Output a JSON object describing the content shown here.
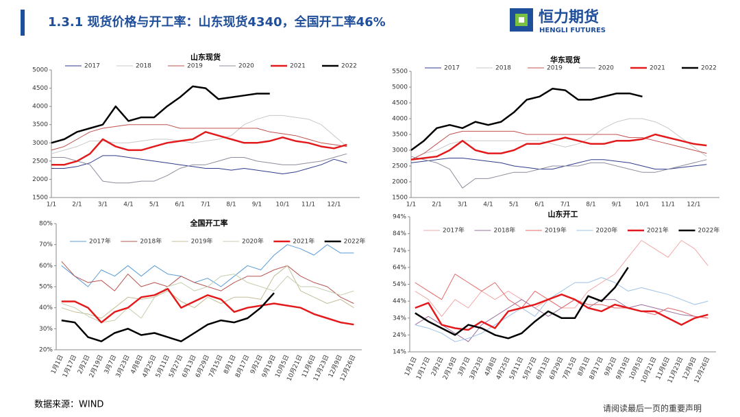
{
  "header": {
    "title": "1.3.1  现货价格与开工率：山东现货4340，全国开工率46%",
    "logo_cn": "恒力期货",
    "logo_en": "HENGLI FUTURES"
  },
  "footer": {
    "source": "数据来源：WIND",
    "notice": "请阅读最后一页的重要声明"
  },
  "chart_data": [
    {
      "type": "line",
      "title": "山东现货",
      "legend": "top",
      "grid": false,
      "categories": [
        "1/1",
        null,
        "2/1",
        null,
        "3/1",
        null,
        "4/1",
        null,
        "5/1",
        null,
        "6/1",
        null,
        "7/1",
        null,
        "8/1",
        null,
        "9/1",
        null,
        "10/1",
        null,
        "11/1",
        null,
        "12/1",
        null
      ],
      "ylim": [
        1500,
        5000
      ],
      "yticks": [
        1500,
        2000,
        2500,
        3000,
        3500,
        4000,
        4500,
        5000
      ],
      "series": [
        {
          "name": "2017",
          "color": "#2f3a8c",
          "width": 1,
          "values": [
            2300,
            2300,
            2350,
            2450,
            2650,
            2650,
            2600,
            2550,
            2500,
            2450,
            2400,
            2350,
            2300,
            2300,
            2250,
            2300,
            2250,
            2200,
            2150,
            2200,
            2300,
            2400,
            2550,
            2450
          ]
        },
        {
          "name": "2018",
          "color": "#c8c8c8",
          "width": 1,
          "values": [
            2700,
            2800,
            2900,
            3050,
            3050,
            3000,
            3000,
            3050,
            3100,
            3100,
            3050,
            3000,
            3050,
            3100,
            3200,
            3500,
            3650,
            3750,
            3750,
            3700,
            3650,
            3500,
            3200,
            2900
          ]
        },
        {
          "name": "2019",
          "color": "#c0504d",
          "width": 1,
          "values": [
            2800,
            2900,
            3100,
            3300,
            3400,
            3450,
            3500,
            3500,
            3500,
            3500,
            3400,
            3400,
            3400,
            3400,
            3400,
            3400,
            3400,
            3300,
            3250,
            3200,
            3100,
            3000,
            2950,
            2900
          ]
        },
        {
          "name": "2020",
          "color": "#8c8c9c",
          "width": 1,
          "values": [
            2600,
            2600,
            2500,
            2400,
            1950,
            1900,
            1900,
            1950,
            1950,
            2100,
            2300,
            2400,
            2400,
            2500,
            2600,
            2600,
            2500,
            2450,
            2400,
            2400,
            2450,
            2500,
            2600,
            2700
          ]
        },
        {
          "name": "2021",
          "color": "#e31a1c",
          "width": 2.5,
          "values": [
            2400,
            2400,
            2500,
            2700,
            3100,
            2900,
            2800,
            2800,
            2900,
            3000,
            3050,
            3100,
            3300,
            3200,
            3100,
            3000,
            3000,
            3050,
            3150,
            3050,
            3000,
            2900,
            2850,
            2950
          ]
        },
        {
          "name": "2022",
          "color": "#000000",
          "width": 2.5,
          "values": [
            3000,
            3100,
            3300,
            3400,
            3500,
            4000,
            3600,
            3700,
            3700,
            4000,
            4250,
            4550,
            4500,
            4200,
            4250,
            4300,
            4350,
            4350,
            null,
            null,
            null,
            null,
            null,
            null
          ]
        }
      ]
    },
    {
      "type": "line",
      "title": "华东现货",
      "legend": "top",
      "grid": false,
      "categories": [
        "1/1",
        null,
        "2/1",
        null,
        "3/1",
        null,
        "4/1",
        null,
        "5/1",
        null,
        "6/1",
        null,
        "7/1",
        null,
        "8/1",
        null,
        "9/1",
        null,
        "10/1",
        null,
        "11/1",
        null,
        "12/1",
        null
      ],
      "ylim": [
        1500,
        5500
      ],
      "yticks": [
        1500,
        2000,
        2500,
        3000,
        3500,
        4000,
        4500,
        5000,
        5500
      ],
      "series": [
        {
          "name": "2017",
          "color": "#2f3a8c",
          "width": 1,
          "values": [
            2600,
            2650,
            2700,
            2750,
            2750,
            2700,
            2650,
            2600,
            2500,
            2450,
            2400,
            2400,
            2500,
            2600,
            2700,
            2700,
            2650,
            2600,
            2500,
            2400,
            2400,
            2450,
            2500,
            2550
          ]
        },
        {
          "name": "2018",
          "color": "#c8c8c8",
          "width": 1,
          "values": [
            2700,
            2900,
            3000,
            3200,
            3300,
            3300,
            3300,
            3300,
            3300,
            3300,
            3300,
            3200,
            3100,
            3200,
            3400,
            3700,
            3900,
            4000,
            4000,
            3900,
            3700,
            3400,
            3100,
            2800
          ]
        },
        {
          "name": "2019",
          "color": "#c0504d",
          "width": 1,
          "values": [
            2700,
            2900,
            3200,
            3500,
            3600,
            3600,
            3600,
            3600,
            3600,
            3500,
            3500,
            3500,
            3500,
            3500,
            3500,
            3500,
            3500,
            3400,
            3400,
            3300,
            3200,
            3100,
            3000,
            2900
          ]
        },
        {
          "name": "2020",
          "color": "#8c8c9c",
          "width": 1,
          "values": [
            2800,
            2700,
            2600,
            2400,
            1800,
            2100,
            2100,
            2200,
            2300,
            2300,
            2400,
            2500,
            2500,
            2500,
            2600,
            2600,
            2500,
            2400,
            2300,
            2300,
            2400,
            2500,
            2600,
            2700
          ]
        },
        {
          "name": "2021",
          "color": "#e31a1c",
          "width": 2.5,
          "values": [
            2700,
            2750,
            2800,
            3000,
            3300,
            3000,
            2900,
            2900,
            3000,
            3200,
            3200,
            3300,
            3400,
            3300,
            3200,
            3200,
            3300,
            3300,
            3350,
            3500,
            3400,
            3300,
            3200,
            3150
          ]
        },
        {
          "name": "2022",
          "color": "#000000",
          "width": 2.5,
          "values": [
            3000,
            3300,
            3700,
            3800,
            3700,
            3900,
            3800,
            3900,
            4200,
            4600,
            4700,
            4950,
            4900,
            4600,
            4600,
            4700,
            4800,
            4800,
            4700,
            null,
            null,
            null,
            null,
            null
          ]
        }
      ]
    },
    {
      "type": "line",
      "title": "全国开工率",
      "legend": "top",
      "grid": false,
      "categories": [
        "1月1日",
        "1月17日",
        "2月2日",
        "2月19日",
        "3月7日",
        "3月23日",
        "4月8日",
        "4月25日",
        "5月11日",
        "5月27日",
        "6月13日",
        "6月29日",
        "7月15日",
        "8月1日",
        "8月17日",
        "9月2日",
        "9月19日",
        "10月5日",
        "10月21日",
        "11月6日",
        "11月23日",
        "12月9日",
        "12月26日"
      ],
      "ylim": [
        20,
        80
      ],
      "yticks": [
        {
          "value": 20,
          "label": "20%"
        },
        {
          "value": 30,
          "label": "30%"
        },
        {
          "value": 40,
          "label": "40%"
        },
        {
          "value": 50,
          "label": "50%"
        },
        {
          "value": 60,
          "label": "60%"
        },
        {
          "value": 70,
          "label": "70%"
        },
        {
          "value": 80,
          "label": "80%"
        }
      ],
      "series": [
        {
          "name": "2017年",
          "color": "#5b9bd5",
          "width": 1,
          "values": [
            60,
            55,
            50,
            58,
            55,
            60,
            55,
            60,
            56,
            55,
            52,
            54,
            50,
            55,
            60,
            58,
            65,
            70,
            68,
            65,
            70,
            66,
            66
          ]
        },
        {
          "name": "2018年",
          "color": "#b85450",
          "width": 1,
          "values": [
            62,
            55,
            52,
            53,
            48,
            56,
            50,
            52,
            50,
            55,
            52,
            50,
            48,
            52,
            55,
            55,
            58,
            60,
            55,
            52,
            50,
            45,
            42
          ]
        },
        {
          "name": "2019年",
          "color": "#c4bd97",
          "width": 1,
          "values": [
            40,
            38,
            37,
            35,
            40,
            45,
            44,
            45,
            48,
            43,
            40,
            45,
            42,
            45,
            45,
            44,
            55,
            60,
            48,
            45,
            42,
            44,
            40
          ]
        },
        {
          "name": "2020年",
          "color": "#c3cfb0",
          "width": 1,
          "values": [
            42,
            40,
            36,
            33,
            34,
            40,
            35,
            45,
            50,
            52,
            48,
            50,
            55,
            56,
            52,
            50,
            48,
            55,
            50,
            50,
            48,
            46,
            48
          ]
        },
        {
          "name": "2021年",
          "color": "#e31a1c",
          "width": 2.5,
          "values": [
            43,
            43,
            40,
            33,
            38,
            40,
            45,
            46,
            49,
            40,
            43,
            46,
            44,
            38,
            40,
            41,
            42,
            41,
            40,
            37,
            35,
            33,
            32
          ]
        },
        {
          "name": "2022年",
          "color": "#000000",
          "width": 2.5,
          "values": [
            34,
            33,
            26,
            24,
            28,
            30,
            27,
            28,
            26,
            24,
            28,
            32,
            34,
            33,
            35,
            40,
            47,
            null,
            null,
            null,
            null,
            null,
            null
          ]
        }
      ]
    },
    {
      "type": "line",
      "title": "山东开工",
      "legend": "top",
      "grid": false,
      "categories": [
        "1月1日",
        "1月17日",
        "2月2日",
        "2月19日",
        "3月7日",
        "3月23日",
        "4月8日",
        "4月25日",
        "5月11日",
        "5月27日",
        "6月13日",
        "6月29日",
        "7月15日",
        "8月1日",
        "8月17日",
        "9月2日",
        "9月19日",
        "10月5日",
        "10月21日",
        "11月6日",
        "11月23日",
        "12月9日",
        "12月26日"
      ],
      "ylim": [
        14,
        94
      ],
      "yticks": [
        {
          "value": 14,
          "label": "14%"
        },
        {
          "value": 24,
          "label": "24%"
        },
        {
          "value": 34,
          "label": "34%"
        },
        {
          "value": 44,
          "label": "44%"
        },
        {
          "value": 54,
          "label": "54%"
        },
        {
          "value": 64,
          "label": "64%"
        },
        {
          "value": 74,
          "label": "74%"
        },
        {
          "value": 84,
          "label": "84%"
        },
        {
          "value": 94,
          "label": "94%"
        }
      ],
      "series": [
        {
          "name": "2017年",
          "color": "#f4a6a6",
          "width": 1,
          "values": [
            50,
            45,
            35,
            45,
            40,
            50,
            45,
            50,
            45,
            40,
            45,
            40,
            40,
            50,
            55,
            60,
            70,
            80,
            75,
            70,
            80,
            75,
            65
          ]
        },
        {
          "name": "2018年",
          "color": "#9c6fa0",
          "width": 1,
          "values": [
            30,
            35,
            30,
            25,
            20,
            30,
            35,
            40,
            45,
            40,
            35,
            40,
            45,
            40,
            45,
            45,
            40,
            42,
            40,
            38,
            36,
            35,
            34
          ]
        },
        {
          "name": "2019年",
          "color": "#e06666",
          "width": 1,
          "values": [
            55,
            50,
            45,
            60,
            55,
            50,
            55,
            45,
            40,
            50,
            45,
            40,
            45,
            42,
            42,
            40,
            40,
            38,
            36,
            40,
            38,
            35,
            34
          ]
        },
        {
          "name": "2020年",
          "color": "#9dc3e6",
          "width": 1,
          "values": [
            30,
            28,
            25,
            20,
            22,
            25,
            30,
            35,
            40,
            35,
            45,
            50,
            55,
            55,
            58,
            55,
            50,
            52,
            50,
            48,
            45,
            42,
            44
          ]
        },
        {
          "name": "2021年",
          "color": "#e31a1c",
          "width": 2.5,
          "values": [
            40,
            43,
            30,
            28,
            27,
            32,
            28,
            38,
            40,
            42,
            45,
            48,
            45,
            40,
            38,
            42,
            40,
            38,
            38,
            34,
            30,
            34,
            36
          ]
        },
        {
          "name": "2022年",
          "color": "#000000",
          "width": 2.5,
          "values": [
            37,
            32,
            28,
            24,
            30,
            28,
            24,
            22,
            25,
            32,
            38,
            34,
            34,
            47,
            44,
            52,
            64,
            null,
            null,
            null,
            null,
            null,
            null
          ]
        }
      ]
    }
  ]
}
